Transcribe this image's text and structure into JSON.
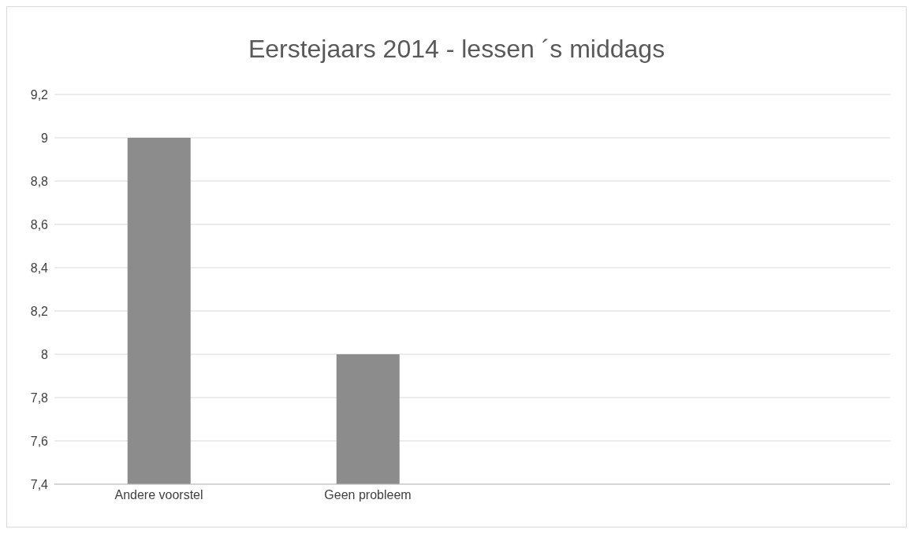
{
  "chart_data": {
    "type": "bar",
    "title": "Eerstejaars 2014 - lessen ´s middags",
    "categories": [
      "Andere voorstel",
      "Geen probleem",
      null,
      null
    ],
    "values": [
      9,
      8,
      null,
      null
    ],
    "color": "#8c8c8c",
    "ylim": [
      7.4,
      9.2
    ],
    "yticks": [
      {
        "value": 7.4,
        "label": "7,4"
      },
      {
        "value": 7.6,
        "label": "7,6"
      },
      {
        "value": 7.8,
        "label": "7,8"
      },
      {
        "value": 8,
        "label": "8"
      },
      {
        "value": 8.2,
        "label": "8,2"
      },
      {
        "value": 8.4,
        "label": "8,4"
      },
      {
        "value": 8.6,
        "label": "8,6"
      },
      {
        "value": 8.8,
        "label": "8,8"
      },
      {
        "value": 9,
        "label": "9"
      },
      {
        "value": 9.2,
        "label": "9,2"
      }
    ],
    "grid": "y"
  }
}
